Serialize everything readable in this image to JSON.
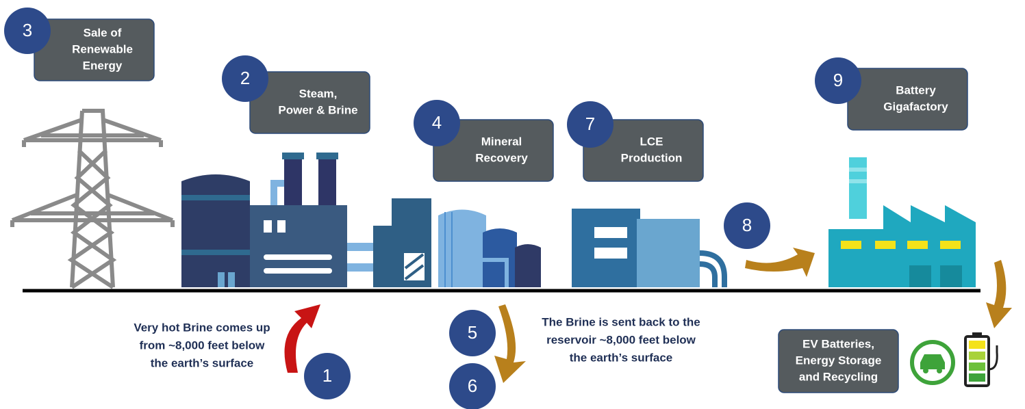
{
  "markers": [
    "3",
    "2",
    "4",
    "7",
    "9",
    "8",
    "1",
    "5",
    "6"
  ],
  "boxes": [
    {
      "lines": [
        "Sale of",
        "Renewable",
        "Energy"
      ]
    },
    {
      "lines": [
        "Steam,",
        "Power & Brine"
      ]
    },
    {
      "lines": [
        "Mineral",
        "Recovery"
      ]
    },
    {
      "lines": [
        "LCE",
        "Production"
      ]
    },
    {
      "lines": [
        "Battery",
        "Gigafactory"
      ]
    },
    {
      "lines": [
        "EV Batteries,",
        "Energy Storage",
        "and Recycling"
      ]
    }
  ],
  "notes": [
    {
      "lines": [
        "Very hot Brine comes up",
        "from ~8,000 feet below",
        "the earth’s surface"
      ]
    },
    {
      "lines": [
        "The Brine is sent back to the",
        "reservoir ~8,000 feet below",
        "the earth’s surface"
      ]
    }
  ]
}
